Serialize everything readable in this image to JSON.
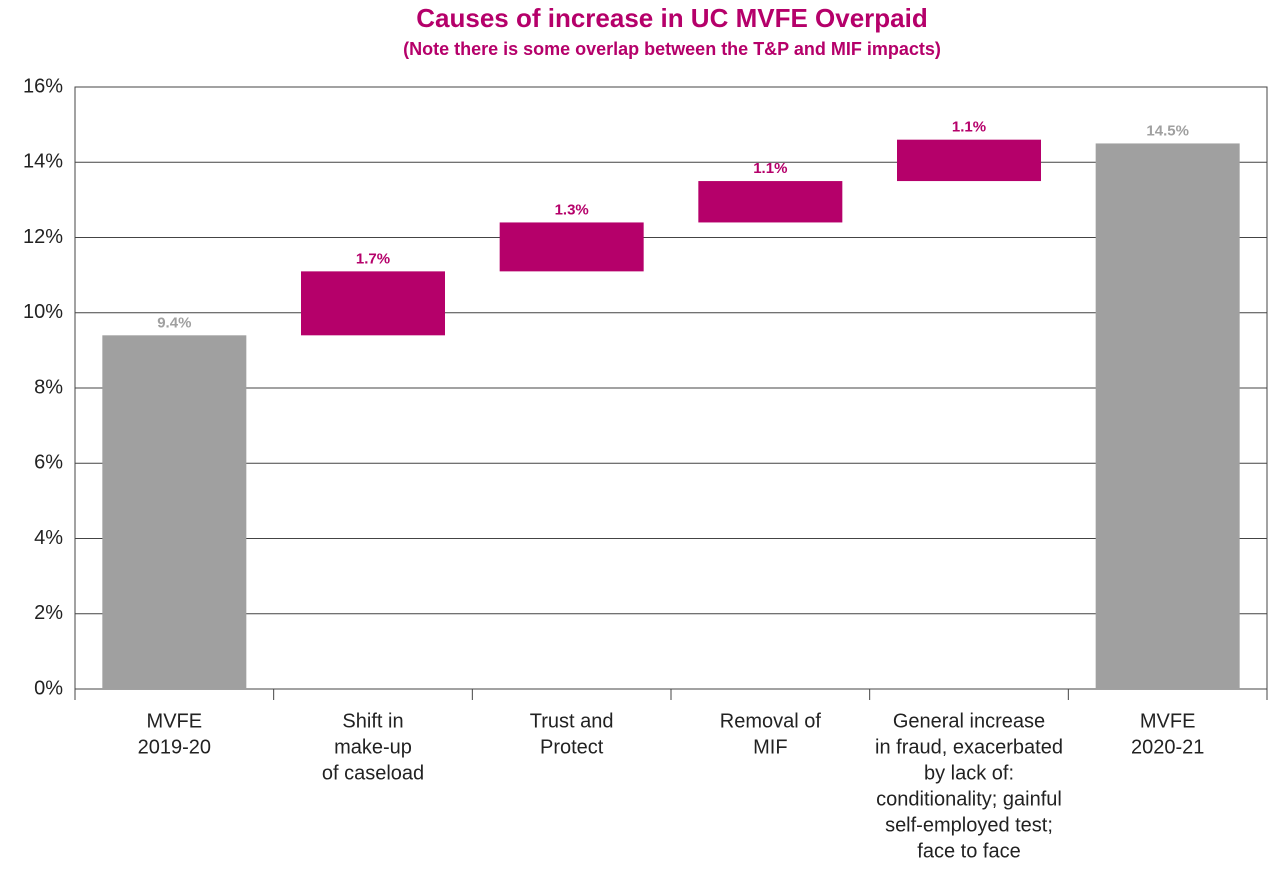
{
  "chart_data": {
    "type": "waterfall",
    "title": "Causes of increase in UC MVFE Overpaid",
    "subtitle": "(Note there is some overlap between the T&P and MIF impacts)",
    "categories": [
      [
        "MVFE",
        "2019-20"
      ],
      [
        "Shift in",
        "make-up",
        "of caseload"
      ],
      [
        "Trust and",
        "Protect"
      ],
      [
        "Removal of",
        "MIF"
      ],
      [
        "General increase",
        "in fraud, exacerbated",
        "by lack of:",
        "conditionality; gainful",
        "self-employed test;",
        "face to face"
      ],
      [
        "MVFE",
        "2020-21"
      ]
    ],
    "values": [
      9.4,
      1.7,
      1.3,
      1.1,
      1.1,
      14.5
    ],
    "value_labels": [
      "9.4%",
      "1.7%",
      "1.3%",
      "1.1%",
      "1.1%",
      "14.5%"
    ],
    "colors": [
      "#a0a0a0",
      "#b5006a",
      "#b5006a",
      "#b5006a",
      "#b5006a",
      "#a0a0a0"
    ],
    "ylim": [
      0,
      16
    ],
    "yticks": [
      {
        "value": 0,
        "label": "0%"
      },
      {
        "value": 2,
        "label": "2%"
      },
      {
        "value": 4,
        "label": "4%"
      },
      {
        "value": 6,
        "label": "6%"
      },
      {
        "value": 8,
        "label": "8%"
      },
      {
        "value": 10,
        "label": "10%"
      },
      {
        "value": 12,
        "label": "12%"
      },
      {
        "value": 14,
        "label": "14%"
      },
      {
        "value": 16,
        "label": "16%"
      }
    ],
    "grid": true
  }
}
